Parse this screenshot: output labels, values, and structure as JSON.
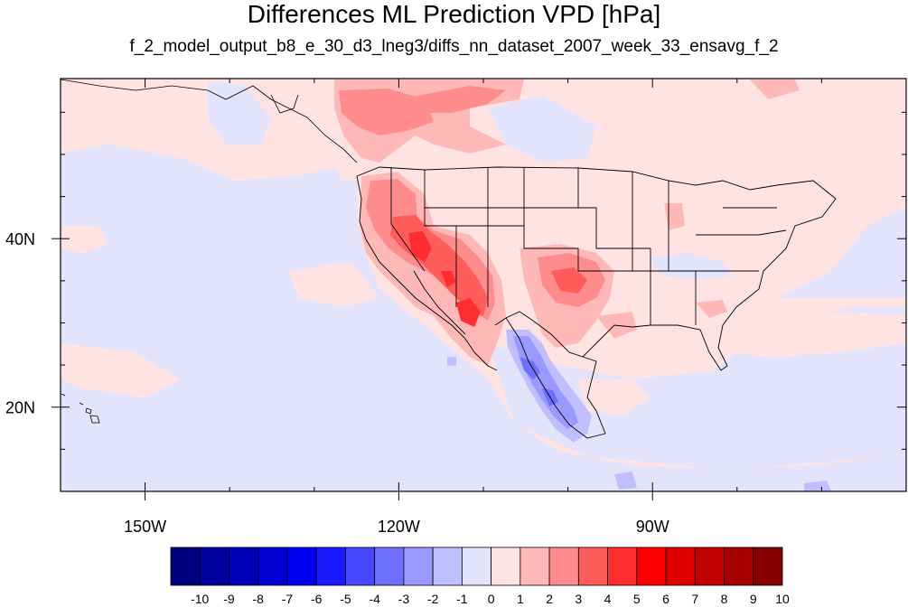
{
  "title": "Differences ML Prediction VPD [hPa]",
  "subtitle": "f_2_model_output_b8_e_30_d3_lneg3/diffs_nn_dataset_2007_week_33_ensavg_f_2",
  "map": {
    "lon_range": [
      -160,
      -60
    ],
    "lat_range": [
      10,
      59
    ],
    "lon_ticks": [
      {
        "value": -150,
        "label": "150W"
      },
      {
        "value": -120,
        "label": "120W"
      },
      {
        "value": -90,
        "label": "90W"
      }
    ],
    "lat_ticks": [
      {
        "value": 40,
        "label": "40N"
      },
      {
        "value": 20,
        "label": "20N"
      }
    ],
    "background_level": "0 to 1 (light pink)",
    "ocean_level": "-1 to 0 (light lavender)"
  },
  "colorbar": {
    "labels": [
      "-10",
      "-9",
      "-8",
      "-7",
      "-6",
      "-5",
      "-4",
      "-3",
      "-2",
      "-1",
      "0",
      "1",
      "2",
      "3",
      "4",
      "5",
      "6",
      "7",
      "8",
      "9",
      "10"
    ],
    "colors": [
      "#000080",
      "#00009c",
      "#0000b8",
      "#0000d4",
      "#0000f0",
      "#1a1aff",
      "#4848ff",
      "#6f6fff",
      "#9999ff",
      "#bfbfff",
      "#e3e3fc",
      "#ffe3e3",
      "#ffb8b8",
      "#ff8c8c",
      "#ff5c5c",
      "#ff2e2e",
      "#ff0000",
      "#e00000",
      "#c20000",
      "#a60000",
      "#8a0000"
    ]
  }
}
